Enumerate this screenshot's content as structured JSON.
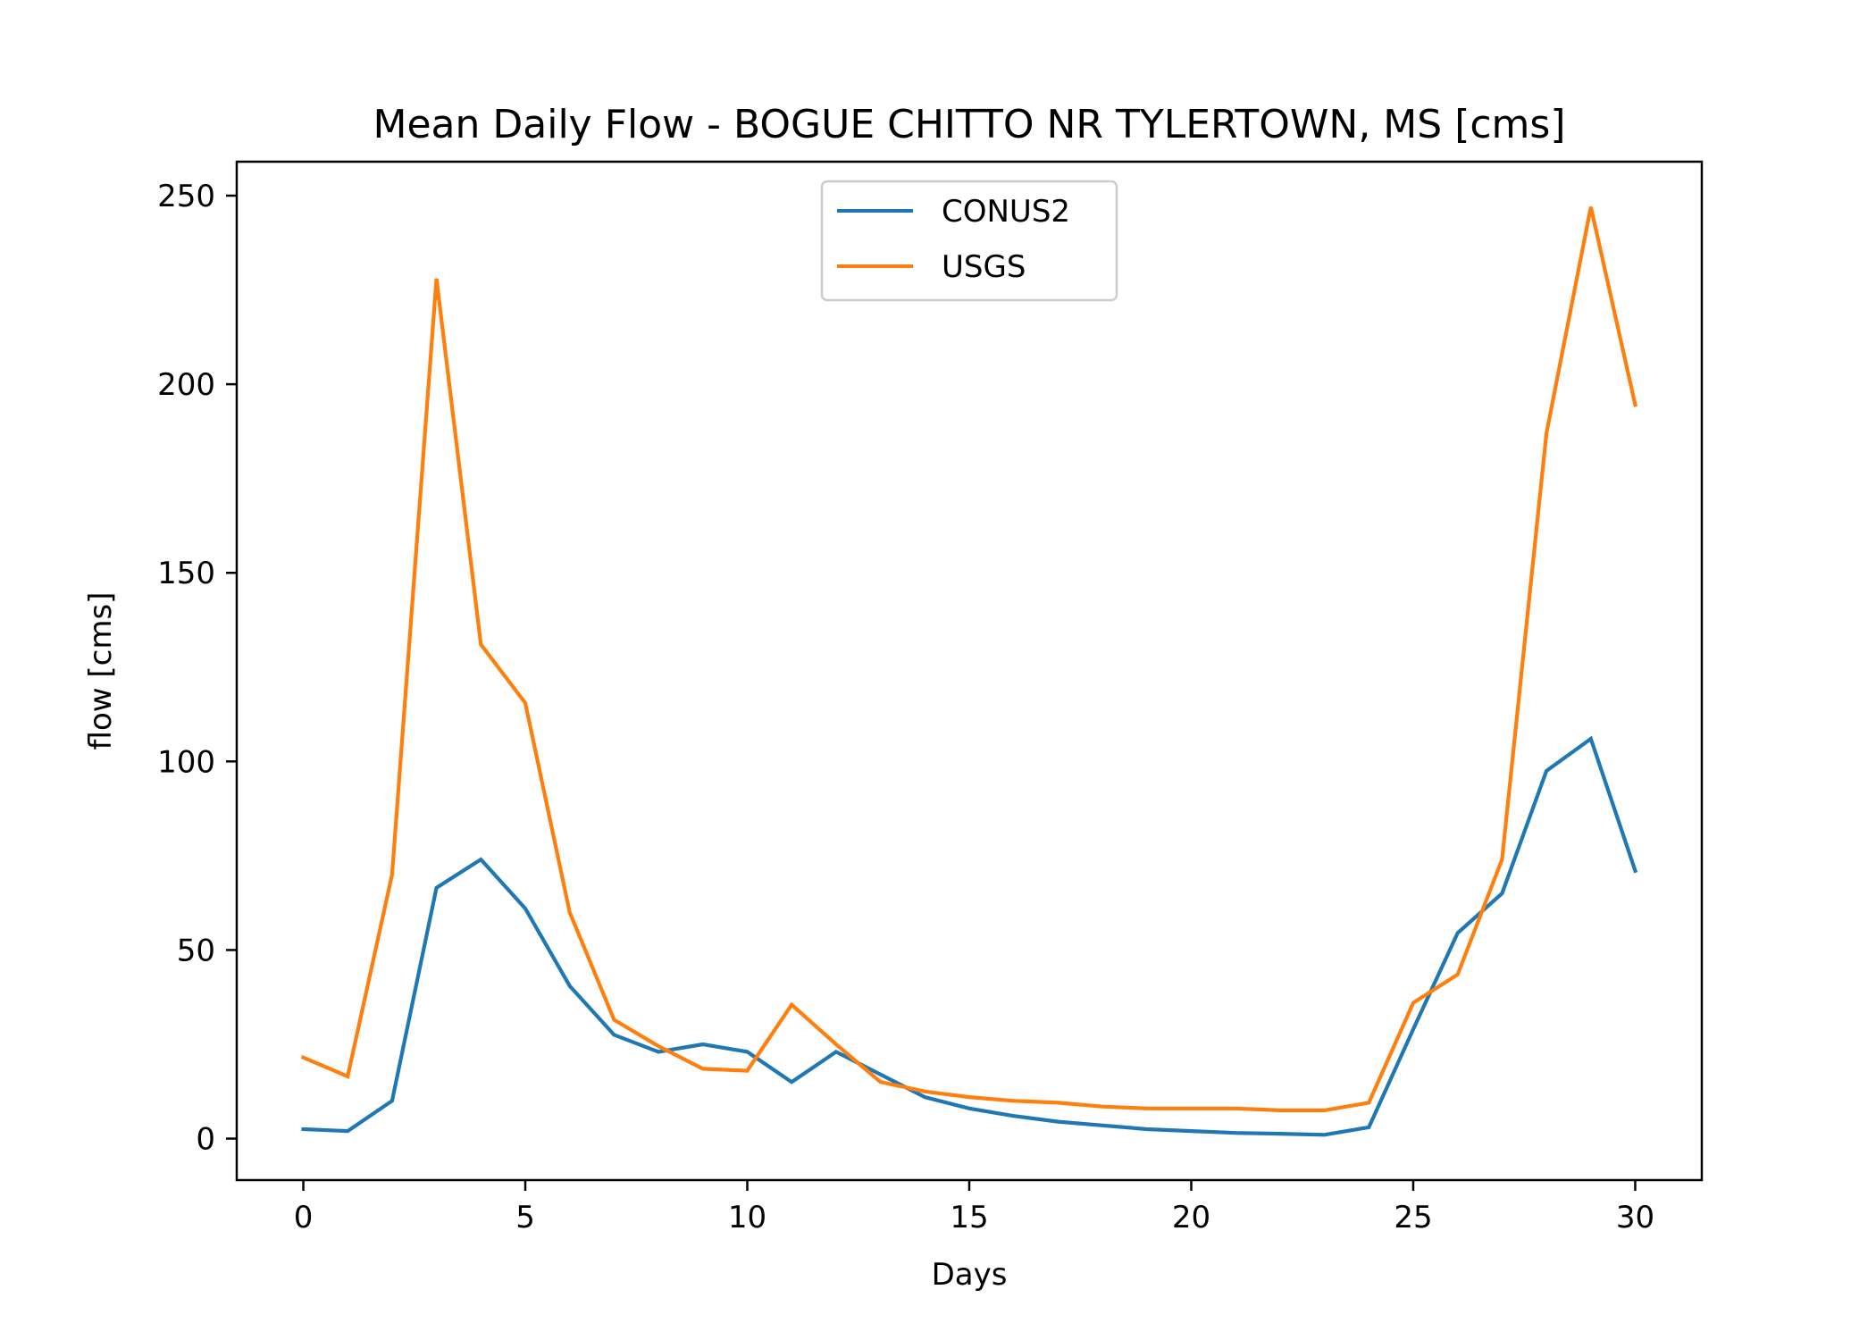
{
  "chart_data": {
    "type": "line",
    "title": "Mean Daily Flow - BOGUE CHITTO NR TYLERTOWN, MS [cms]",
    "xlabel": "Days",
    "ylabel": "flow [cms]",
    "xlim": [
      -1.5,
      31.5
    ],
    "ylim": [
      -11,
      259
    ],
    "xticks": [
      0,
      5,
      10,
      15,
      20,
      25,
      30
    ],
    "yticks": [
      0,
      50,
      100,
      150,
      200,
      250
    ],
    "grid": false,
    "legend_position": "top-center",
    "x": [
      0,
      1,
      2,
      3,
      4,
      5,
      6,
      7,
      8,
      9,
      10,
      11,
      12,
      13,
      14,
      15,
      16,
      17,
      18,
      19,
      20,
      21,
      22,
      23,
      24,
      25,
      26,
      27,
      28,
      29,
      30
    ],
    "series": [
      {
        "name": "CONUS2",
        "color": "#1f77b4",
        "values": [
          2.5,
          2,
          10,
          66.5,
          74,
          61,
          40.5,
          27.5,
          23,
          25,
          23,
          15,
          23,
          17,
          11,
          8,
          6,
          4.5,
          3.5,
          2.5,
          2,
          1.5,
          1.3,
          1,
          3,
          29,
          54.5,
          65,
          97.5,
          106,
          71
        ]
      },
      {
        "name": "USGS",
        "color": "#ff7f0e",
        "values": [
          21.5,
          16.5,
          70,
          228,
          131,
          115.5,
          60,
          31.5,
          24.5,
          18.5,
          18,
          35.5,
          25,
          15,
          12.5,
          11,
          10,
          9.5,
          8.5,
          8,
          8,
          8,
          7.5,
          7.5,
          9.5,
          36,
          43.5,
          74,
          187,
          247,
          194.5
        ]
      }
    ]
  }
}
